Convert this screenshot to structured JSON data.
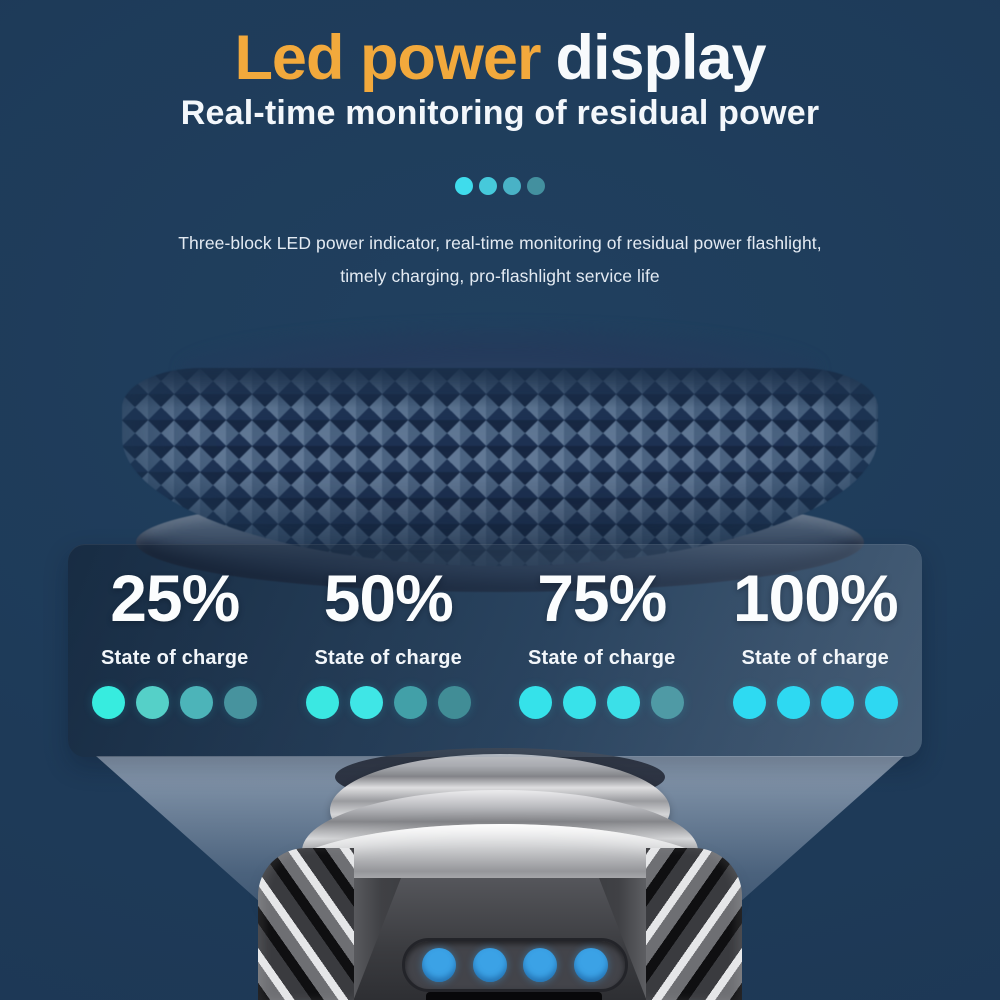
{
  "header": {
    "title_accent": "Led power",
    "title_rest": "display",
    "accent_color": "#f2a93c",
    "subtitle": "Real-time monitoring of residual power",
    "description_line1": "Three-block LED power indicator, real-time monitoring of residual power flashlight,",
    "description_line2": "timely charging, pro-flashlight service life"
  },
  "hero_dots": {
    "colors": [
      "#3fdcec",
      "#46c9db",
      "#49b2c6",
      "#43909f"
    ]
  },
  "charge_levels": [
    {
      "percent": "25%",
      "label": "State of charge",
      "dot_colors": [
        "#37ecdf",
        "#55d0c8",
        "#4cb4b9",
        "#47939e"
      ]
    },
    {
      "percent": "50%",
      "label": "State of charge",
      "dot_colors": [
        "#3ae8e2",
        "#3fe6e6",
        "#42a0a8",
        "#418d96"
      ]
    },
    {
      "percent": "75%",
      "label": "State of charge",
      "dot_colors": [
        "#35e2ea",
        "#38e2ea",
        "#3be0e8",
        "#4f9aa5"
      ]
    },
    {
      "percent": "100%",
      "label": "State of charge",
      "dot_colors": [
        "#2edaf2",
        "#2ed9f2",
        "#2ed9f2",
        "#2ed8f2"
      ]
    }
  ],
  "flashlight": {
    "led_color": "#3ba2e6"
  }
}
